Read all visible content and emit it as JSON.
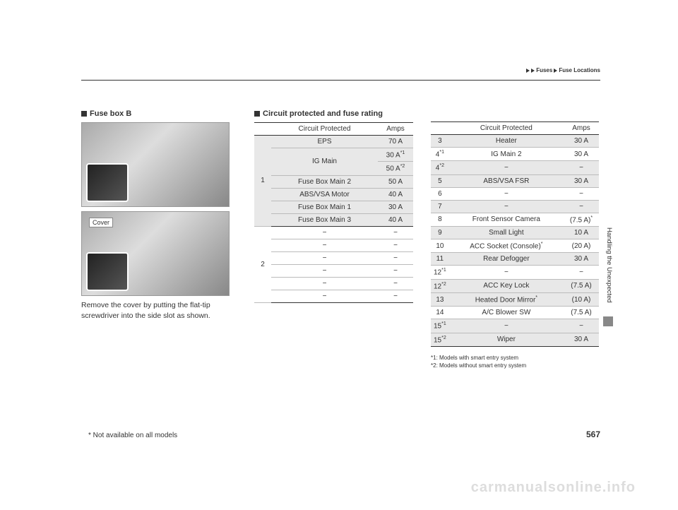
{
  "breadcrumb": {
    "a": "Fuses",
    "b": "Fuse Locations"
  },
  "left": {
    "title": "Fuse box B",
    "cover_label": "Cover",
    "caption_l1": "Remove the cover by putting the flat-tip",
    "caption_l2": "screwdriver into the side slot as shown."
  },
  "mid": {
    "title": "Circuit protected and fuse rating",
    "headers": {
      "c": "Circuit Protected",
      "a": "Amps"
    },
    "rows": [
      {
        "num": "1",
        "circuit": "EPS",
        "amps": "70 A",
        "shade": true,
        "rowspan": 6
      },
      {
        "circuit": "IG Main",
        "amps": "30 A*1",
        "shade": true,
        "rowspan_mid": 2
      },
      {
        "amps": "50 A*2",
        "shade": true
      },
      {
        "circuit": "Fuse Box Main 2",
        "amps": "50 A",
        "shade": true
      },
      {
        "circuit": "ABS/VSA Motor",
        "amps": "40 A",
        "shade": true
      },
      {
        "circuit": "Fuse Box Main 1",
        "amps": "30 A",
        "shade": true
      },
      {
        "circuit": "Fuse Box Main 3",
        "amps": "40 A",
        "shade": true,
        "group_end": true
      },
      {
        "num": "2",
        "circuit": "−",
        "amps": "−",
        "rowspan": 6
      },
      {
        "circuit": "−",
        "amps": "−"
      },
      {
        "circuit": "−",
        "amps": "−"
      },
      {
        "circuit": "−",
        "amps": "−"
      },
      {
        "circuit": "−",
        "amps": "−"
      },
      {
        "circuit": "−",
        "amps": "−",
        "last": true
      }
    ]
  },
  "right": {
    "headers": {
      "c": "Circuit Protected",
      "a": "Amps"
    },
    "rows": [
      {
        "num": "3",
        "circuit": "Heater",
        "amps": "30 A",
        "shade": true
      },
      {
        "num": "4*1",
        "circuit": "IG Main 2",
        "amps": "30 A"
      },
      {
        "num": "4*2",
        "circuit": "−",
        "amps": "−",
        "shade": true
      },
      {
        "num": "5",
        "circuit": "ABS/VSA FSR",
        "amps": "30 A",
        "shade": true
      },
      {
        "num": "6",
        "circuit": "−",
        "amps": "−"
      },
      {
        "num": "7",
        "circuit": "−",
        "amps": "−",
        "shade": true
      },
      {
        "num": "8",
        "circuit": "Front Sensor Camera",
        "amps": "(7.5 A)*"
      },
      {
        "num": "9",
        "circuit": "Small Light",
        "amps": "10 A",
        "shade": true
      },
      {
        "num": "10",
        "circuit": "ACC Socket (Console)*",
        "amps": "(20 A)"
      },
      {
        "num": "11",
        "circuit": "Rear Defogger",
        "amps": "30 A",
        "shade": true
      },
      {
        "num": "12*1",
        "circuit": "−",
        "amps": "−"
      },
      {
        "num": "12*2",
        "circuit": "ACC Key Lock",
        "amps": "(7.5 A)",
        "shade": true
      },
      {
        "num": "13",
        "circuit": "Heated Door Mirror*",
        "amps": "(10 A)",
        "shade": true
      },
      {
        "num": "14",
        "circuit": "A/C Blower SW",
        "amps": "(7.5 A)"
      },
      {
        "num": "15*1",
        "circuit": "−",
        "amps": "−",
        "shade": true
      },
      {
        "num": "15*2",
        "circuit": "Wiper",
        "amps": "30 A",
        "shade": true,
        "last": true
      }
    ],
    "footnote1": "*1: Models with smart entry system",
    "footnote2": "*2: Models without smart entry system"
  },
  "side_tab": "Handling the Unexpected",
  "footer_note": "* Not available on all models",
  "page_num": "567",
  "watermark": "carmanualsonline.info"
}
